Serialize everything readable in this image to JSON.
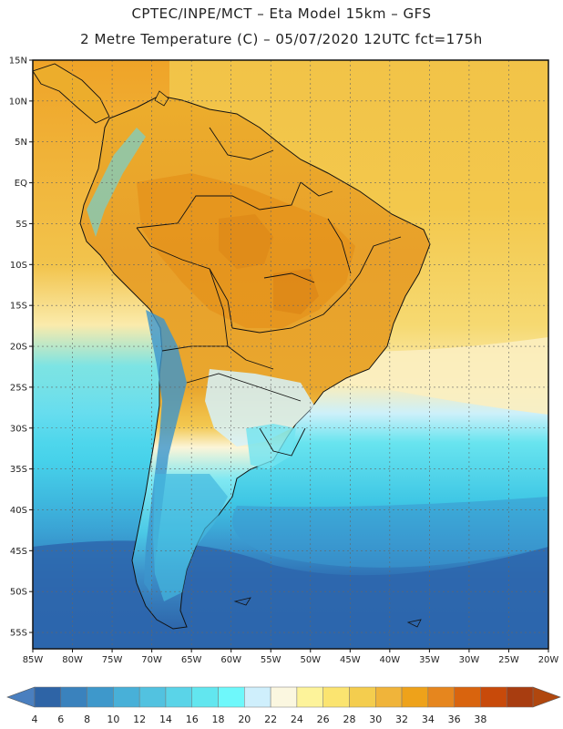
{
  "header": {
    "title_line1": "CPTEC/INPE/MCT –  Eta Model 15km – GFS",
    "title_line2": "2 Metre Temperature (C) – 05/07/2020 12UTC fct=175h"
  },
  "map": {
    "lat_labels": [
      "15N",
      "10N",
      "5N",
      "EQ",
      "5S",
      "10S",
      "15S",
      "20S",
      "25S",
      "30S",
      "35S",
      "40S",
      "45S",
      "50S",
      "55S"
    ],
    "lon_labels": [
      "85W",
      "80W",
      "75W",
      "70W",
      "65W",
      "60W",
      "55W",
      "50W",
      "45W",
      "40W",
      "35W",
      "30W",
      "25W",
      "20W"
    ],
    "lat_range": [
      15,
      -57
    ],
    "lon_range": [
      -85,
      -20
    ],
    "colors": {
      "land_hot": "#e79a1f",
      "land_warm": "#f0b83a",
      "ocean_warm": "#f5c84a",
      "ocean_mild": "#f9e08a",
      "ocean_cool": "#6fe8f0",
      "ocean_cold": "#3fc9e6",
      "ocean_colder": "#3aa6d6",
      "ocean_coldest": "#2c66ae",
      "border": "#111111"
    }
  },
  "colorbar": {
    "levels": [
      "4",
      "6",
      "8",
      "10",
      "12",
      "14",
      "16",
      "18",
      "20",
      "22",
      "24",
      "26",
      "28",
      "30",
      "32",
      "34",
      "36",
      "38"
    ],
    "colors": [
      "#2e64a6",
      "#3a82bd",
      "#3e98cb",
      "#48b0d8",
      "#52c2e0",
      "#5ad4e8",
      "#62e6ef",
      "#6ef8fb",
      "#cfeffc",
      "#fbf7e0",
      "#fdf39a",
      "#fbe470",
      "#f4cd4e",
      "#f0b43a",
      "#eea21a",
      "#e6861e",
      "#d9640e",
      "#c84a0a",
      "#a83d10"
    ],
    "low_arrow_color": "#4a7fbf",
    "high_arrow_color": "#b0470e"
  }
}
